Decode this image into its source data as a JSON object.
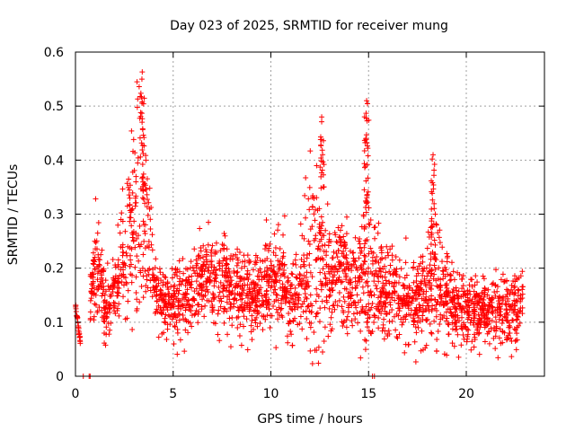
{
  "chart_data": {
    "type": "scatter",
    "title": "Day 023 of 2025, SRMTID for receiver mung",
    "xlabel": "GPS time / hours",
    "ylabel": "SRMTID / TECUs",
    "xlim": [
      0,
      24
    ],
    "ylim": [
      0,
      0.6
    ],
    "xticks": [
      0,
      5,
      10,
      15,
      20
    ],
    "xtick_labels": [
      "0",
      "5",
      "10",
      "15",
      "20"
    ],
    "yticks": [
      0,
      0.1,
      0.2,
      0.3,
      0.4,
      0.5,
      0.6
    ],
    "ytick_labels": [
      "0",
      "0.1",
      "0.2",
      "0.3",
      "0.4",
      "0.5",
      "0.6"
    ],
    "grid": true,
    "marker": "+",
    "series_color": "#ff0000",
    "envelope": {
      "x": [
        0.0,
        0.5,
        0.8,
        1.0,
        1.2,
        1.5,
        1.8,
        2.0,
        2.3,
        2.6,
        2.8,
        3.0,
        3.2,
        3.4,
        3.6,
        3.8,
        4.0,
        4.2,
        4.5,
        5.0,
        5.5,
        6.0,
        6.5,
        7.0,
        7.5,
        8.0,
        8.5,
        9.0,
        9.5,
        10.0,
        10.5,
        11.0,
        11.5,
        12.0,
        12.3,
        12.6,
        12.9,
        13.2,
        13.6,
        14.0,
        14.4,
        14.8,
        15.0,
        15.3,
        15.7,
        16.2,
        16.8,
        17.4,
        18.0,
        18.3,
        18.6,
        19.0,
        19.5,
        20.0,
        20.5,
        21.0,
        21.5,
        22.0,
        22.5,
        22.9
      ],
      "center": [
        0.13,
        0.0,
        0.16,
        0.22,
        0.2,
        0.12,
        0.14,
        0.16,
        0.2,
        0.22,
        0.28,
        0.3,
        0.33,
        0.32,
        0.28,
        0.24,
        0.18,
        0.14,
        0.13,
        0.14,
        0.14,
        0.16,
        0.18,
        0.18,
        0.18,
        0.17,
        0.16,
        0.15,
        0.16,
        0.18,
        0.17,
        0.14,
        0.16,
        0.2,
        0.22,
        0.2,
        0.18,
        0.18,
        0.2,
        0.18,
        0.16,
        0.18,
        0.19,
        0.18,
        0.16,
        0.15,
        0.14,
        0.14,
        0.16,
        0.18,
        0.17,
        0.14,
        0.13,
        0.13,
        0.12,
        0.12,
        0.12,
        0.12,
        0.12,
        0.14
      ],
      "spread": [
        0.01,
        0.0,
        0.05,
        0.09,
        0.08,
        0.06,
        0.06,
        0.07,
        0.08,
        0.1,
        0.14,
        0.18,
        0.22,
        0.24,
        0.14,
        0.1,
        0.06,
        0.05,
        0.05,
        0.06,
        0.06,
        0.06,
        0.07,
        0.08,
        0.07,
        0.07,
        0.07,
        0.06,
        0.07,
        0.09,
        0.08,
        0.07,
        0.08,
        0.14,
        0.18,
        0.12,
        0.09,
        0.09,
        0.1,
        0.09,
        0.08,
        0.14,
        0.16,
        0.08,
        0.08,
        0.07,
        0.07,
        0.07,
        0.08,
        0.12,
        0.09,
        0.07,
        0.06,
        0.06,
        0.06,
        0.06,
        0.06,
        0.06,
        0.06,
        0.05
      ]
    },
    "data_coverage_hours": [
      0.0,
      22.9
    ],
    "point_count": 2600,
    "peaks": [
      {
        "x": 3.4,
        "y": 0.55
      },
      {
        "x": 12.6,
        "y": 0.48
      },
      {
        "x": 14.9,
        "y": 0.51
      },
      {
        "x": 18.3,
        "y": 0.41
      }
    ],
    "zero_points": [
      {
        "x": 0.4,
        "y": 0.0
      },
      {
        "x": 0.7,
        "y": 0.0
      },
      {
        "x": 0.75,
        "y": 0.0
      },
      {
        "x": 15.2,
        "y": 0.0
      },
      {
        "x": 15.3,
        "y": 0.0
      }
    ]
  }
}
